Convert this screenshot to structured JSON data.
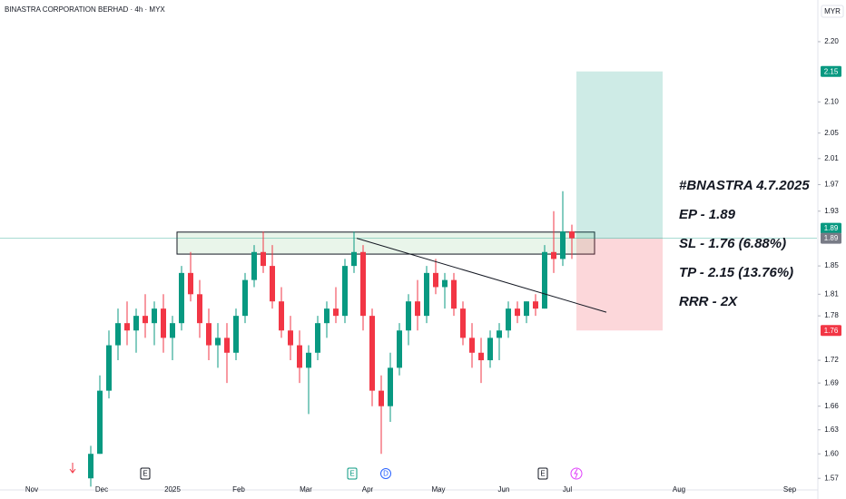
{
  "chart_data": {
    "type": "candlestick",
    "title": "BINASTRA CORPORATION BERHAD · 4h · MYX",
    "currency": "MYR",
    "log_scale": true,
    "grid": false,
    "up_color": "#089981",
    "down_color": "#f23645",
    "xlim": [
      0,
      180
    ],
    "ylim": [
      1.556,
      2.272
    ],
    "xticks": [
      {
        "value": 7,
        "label": "Nov"
      },
      {
        "value": 22.4,
        "label": "Dec"
      },
      {
        "value": 38,
        "label": "2025"
      },
      {
        "value": 52.6,
        "label": "Feb"
      },
      {
        "value": 67.4,
        "label": "Mar"
      },
      {
        "value": 81,
        "label": "Apr"
      },
      {
        "value": 96.6,
        "label": "May"
      },
      {
        "value": 111,
        "label": "Jun"
      },
      {
        "value": 125,
        "label": "Jul"
      },
      {
        "value": 149.6,
        "label": "Aug"
      },
      {
        "value": 174,
        "label": "Sep"
      }
    ],
    "yticks": [
      {
        "value": 2.2,
        "label": "2.20"
      },
      {
        "value": 2.1,
        "label": "2.10"
      },
      2.05,
      2.01,
      1.97,
      1.93,
      1.85,
      1.81,
      1.78,
      1.72,
      1.69,
      1.66,
      1.63,
      {
        "value": 1.6,
        "label": "1.60"
      },
      1.57
    ],
    "x": [
      20,
      22,
      24,
      26,
      28,
      30,
      32,
      34,
      36,
      38,
      40,
      42,
      44,
      46,
      48,
      50,
      52,
      54,
      56,
      58,
      60,
      62,
      64,
      66,
      68,
      70,
      72,
      74,
      76,
      78,
      80,
      82,
      84,
      86,
      88,
      90,
      92,
      94,
      96,
      98,
      100,
      102,
      104,
      106,
      108,
      110,
      112,
      114,
      116,
      118,
      120,
      122,
      124,
      126
    ],
    "open": [
      1.57,
      1.6,
      1.68,
      1.74,
      1.77,
      1.76,
      1.78,
      1.77,
      1.79,
      1.75,
      1.77,
      1.84,
      1.81,
      1.77,
      1.74,
      1.75,
      1.73,
      1.78,
      1.83,
      1.87,
      1.85,
      1.8,
      1.76,
      1.74,
      1.71,
      1.73,
      1.77,
      1.79,
      1.78,
      1.85,
      1.87,
      1.78,
      1.68,
      1.66,
      1.71,
      1.76,
      1.8,
      1.78,
      1.84,
      1.82,
      1.83,
      1.79,
      1.75,
      1.73,
      1.72,
      1.75,
      1.76,
      1.79,
      1.78,
      1.8,
      1.79,
      1.87,
      1.86,
      1.9
    ],
    "high": [
      1.61,
      1.7,
      1.76,
      1.79,
      1.8,
      1.79,
      1.81,
      1.8,
      1.81,
      1.78,
      1.85,
      1.87,
      1.83,
      1.79,
      1.77,
      1.77,
      1.79,
      1.84,
      1.88,
      1.9,
      1.88,
      1.82,
      1.78,
      1.76,
      1.74,
      1.78,
      1.8,
      1.82,
      1.86,
      1.9,
      1.88,
      1.79,
      1.7,
      1.73,
      1.77,
      1.81,
      1.83,
      1.85,
      1.86,
      1.84,
      1.84,
      1.8,
      1.77,
      1.75,
      1.76,
      1.77,
      1.8,
      1.8,
      1.8,
      1.81,
      1.88,
      1.93,
      1.96,
      1.91
    ],
    "low": [
      1.56,
      1.6,
      1.67,
      1.72,
      1.74,
      1.73,
      1.75,
      1.74,
      1.73,
      1.72,
      1.76,
      1.8,
      1.75,
      1.72,
      1.71,
      1.69,
      1.72,
      1.77,
      1.82,
      1.84,
      1.79,
      1.75,
      1.72,
      1.69,
      1.65,
      1.72,
      1.75,
      1.77,
      1.77,
      1.84,
      1.76,
      1.66,
      1.6,
      1.64,
      1.7,
      1.74,
      1.76,
      1.77,
      1.81,
      1.79,
      1.78,
      1.74,
      1.71,
      1.69,
      1.71,
      1.72,
      1.75,
      1.77,
      1.77,
      1.78,
      1.79,
      1.84,
      1.85,
      1.86
    ],
    "close": [
      1.6,
      1.68,
      1.74,
      1.77,
      1.76,
      1.78,
      1.77,
      1.79,
      1.75,
      1.77,
      1.84,
      1.81,
      1.77,
      1.74,
      1.75,
      1.73,
      1.78,
      1.83,
      1.87,
      1.85,
      1.8,
      1.76,
      1.74,
      1.71,
      1.73,
      1.77,
      1.79,
      1.78,
      1.85,
      1.87,
      1.78,
      1.68,
      1.66,
      1.71,
      1.76,
      1.8,
      1.78,
      1.84,
      1.82,
      1.83,
      1.79,
      1.75,
      1.73,
      1.72,
      1.75,
      1.76,
      1.79,
      1.78,
      1.8,
      1.79,
      1.87,
      1.86,
      1.9,
      1.89
    ],
    "zone": {
      "x": [
        39,
        131
      ],
      "y": [
        1.867,
        1.899
      ]
    },
    "trendline": {
      "x": [
        78.6,
        133.6
      ],
      "y": [
        1.89,
        1.785
      ]
    },
    "position": {
      "x": [
        127,
        146
      ],
      "entry": 1.89,
      "stop": 1.76,
      "target": 2.15
    },
    "price_labels": [
      {
        "value": 2.15,
        "color": "#089981"
      },
      {
        "value": 1.89,
        "color": "#089981"
      },
      {
        "value": 1.89,
        "color": "#787b86"
      },
      {
        "value": 1.76,
        "color": "#f23645"
      }
    ],
    "events": [
      {
        "x": 32,
        "label": "E",
        "color": "#131722"
      },
      {
        "x": 77.6,
        "label": "E",
        "color": "#089981"
      },
      {
        "x": 85,
        "label": "D",
        "color": "#2962ff"
      },
      {
        "x": 119.6,
        "label": "E",
        "color": "#131722"
      }
    ],
    "annotations": [
      "#BNASTRA 4.7.2025",
      "EP - 1.89",
      "SL - 1.76 (6.88%)",
      "TP - 2.15 (13.76%)",
      "RRR - 2X"
    ]
  }
}
